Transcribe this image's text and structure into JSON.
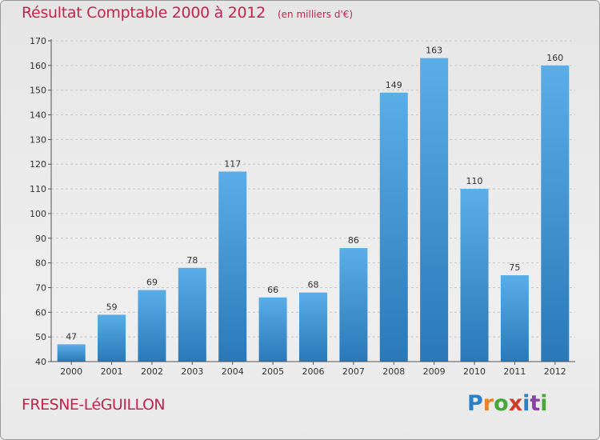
{
  "chart_data": {
    "type": "bar",
    "title": "Résultat Comptable 2000 à 2012",
    "subtitle": "(en milliers d'€)",
    "categories": [
      "2000",
      "2001",
      "2002",
      "2003",
      "2004",
      "2005",
      "2006",
      "2007",
      "2008",
      "2009",
      "2010",
      "2011",
      "2012"
    ],
    "values": [
      47,
      59,
      69,
      78,
      117,
      66,
      68,
      86,
      149,
      163,
      110,
      75,
      160
    ],
    "ylim": [
      40,
      170
    ],
    "yticks": [
      40,
      50,
      60,
      70,
      80,
      90,
      100,
      110,
      120,
      130,
      140,
      150,
      160,
      170
    ],
    "xlabel": "",
    "ylabel": "",
    "grid": true,
    "bar_color": "#3b8fd0",
    "grid_color": "#c8c8c8"
  },
  "footer": {
    "commune": "FRESNE-LéGUILLON",
    "logo_letters": [
      "P",
      "r",
      "o",
      "x",
      "i",
      "t",
      "i"
    ],
    "logo_colors": [
      "#2a7fc9",
      "#e8812a",
      "#49a639",
      "#d23a2a",
      "#2a7fc9",
      "#8b3fa8",
      "#49a639"
    ]
  },
  "colors": {
    "accent": "#c0244f"
  }
}
